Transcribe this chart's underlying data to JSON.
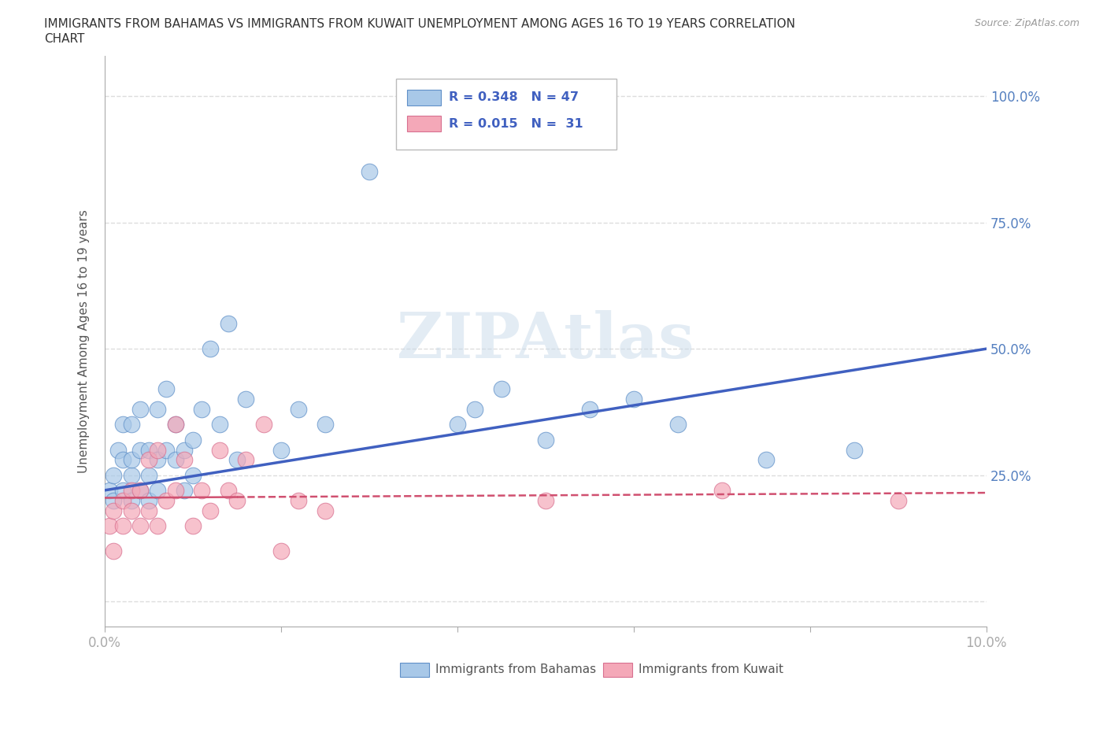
{
  "title_line1": "IMMIGRANTS FROM BAHAMAS VS IMMIGRANTS FROM KUWAIT UNEMPLOYMENT AMONG AGES 16 TO 19 YEARS CORRELATION",
  "title_line2": "CHART",
  "source_text": "Source: ZipAtlas.com",
  "ylabel": "Unemployment Among Ages 16 to 19 years",
  "xlim": [
    0.0,
    0.1
  ],
  "ylim": [
    -0.05,
    1.08
  ],
  "xticks": [
    0.0,
    0.02,
    0.04,
    0.06,
    0.08,
    0.1
  ],
  "xticklabels": [
    "0.0%",
    "",
    "",
    "",
    "",
    "10.0%"
  ],
  "yticks": [
    0.0,
    0.25,
    0.5,
    0.75,
    1.0
  ],
  "yticklabels": [
    "",
    "25.0%",
    "50.0%",
    "75.0%",
    "100.0%"
  ],
  "watermark": "ZIPAtlas",
  "color_bahamas": "#a8c8e8",
  "color_kuwait": "#f4a8b8",
  "edge_bahamas": "#6090c8",
  "edge_kuwait": "#d87090",
  "trendline_bahamas": "#4060c0",
  "trendline_kuwait": "#d05070",
  "background_color": "#ffffff",
  "grid_color": "#dddddd",
  "bahamas_x": [
    0.0005,
    0.001,
    0.001,
    0.0015,
    0.002,
    0.002,
    0.002,
    0.003,
    0.003,
    0.003,
    0.003,
    0.004,
    0.004,
    0.004,
    0.005,
    0.005,
    0.005,
    0.006,
    0.006,
    0.006,
    0.007,
    0.007,
    0.008,
    0.008,
    0.009,
    0.009,
    0.01,
    0.01,
    0.011,
    0.012,
    0.013,
    0.014,
    0.015,
    0.016,
    0.02,
    0.022,
    0.025,
    0.03,
    0.04,
    0.042,
    0.045,
    0.05,
    0.055,
    0.06,
    0.065,
    0.075,
    0.085
  ],
  "bahamas_y": [
    0.22,
    0.2,
    0.25,
    0.3,
    0.22,
    0.28,
    0.35,
    0.2,
    0.25,
    0.28,
    0.35,
    0.22,
    0.3,
    0.38,
    0.2,
    0.25,
    0.3,
    0.22,
    0.28,
    0.38,
    0.3,
    0.42,
    0.28,
    0.35,
    0.22,
    0.3,
    0.25,
    0.32,
    0.38,
    0.5,
    0.35,
    0.55,
    0.28,
    0.4,
    0.3,
    0.38,
    0.35,
    0.85,
    0.35,
    0.38,
    0.42,
    0.32,
    0.38,
    0.4,
    0.35,
    0.28,
    0.3
  ],
  "kuwait_x": [
    0.0005,
    0.001,
    0.001,
    0.002,
    0.002,
    0.003,
    0.003,
    0.004,
    0.004,
    0.005,
    0.005,
    0.006,
    0.006,
    0.007,
    0.008,
    0.008,
    0.009,
    0.01,
    0.011,
    0.012,
    0.013,
    0.014,
    0.015,
    0.016,
    0.018,
    0.02,
    0.022,
    0.025,
    0.05,
    0.07,
    0.09
  ],
  "kuwait_y": [
    0.15,
    0.1,
    0.18,
    0.15,
    0.2,
    0.18,
    0.22,
    0.15,
    0.22,
    0.18,
    0.28,
    0.15,
    0.3,
    0.2,
    0.22,
    0.35,
    0.28,
    0.15,
    0.22,
    0.18,
    0.3,
    0.22,
    0.2,
    0.28,
    0.35,
    0.1,
    0.2,
    0.18,
    0.2,
    0.22,
    0.2
  ],
  "trendline_b_x0": 0.0,
  "trendline_b_y0": 0.22,
  "trendline_b_x1": 0.1,
  "trendline_b_y1": 0.5,
  "trendline_k_x0": 0.0,
  "trendline_k_y0": 0.205,
  "trendline_k_x1": 0.1,
  "trendline_k_y1": 0.215
}
